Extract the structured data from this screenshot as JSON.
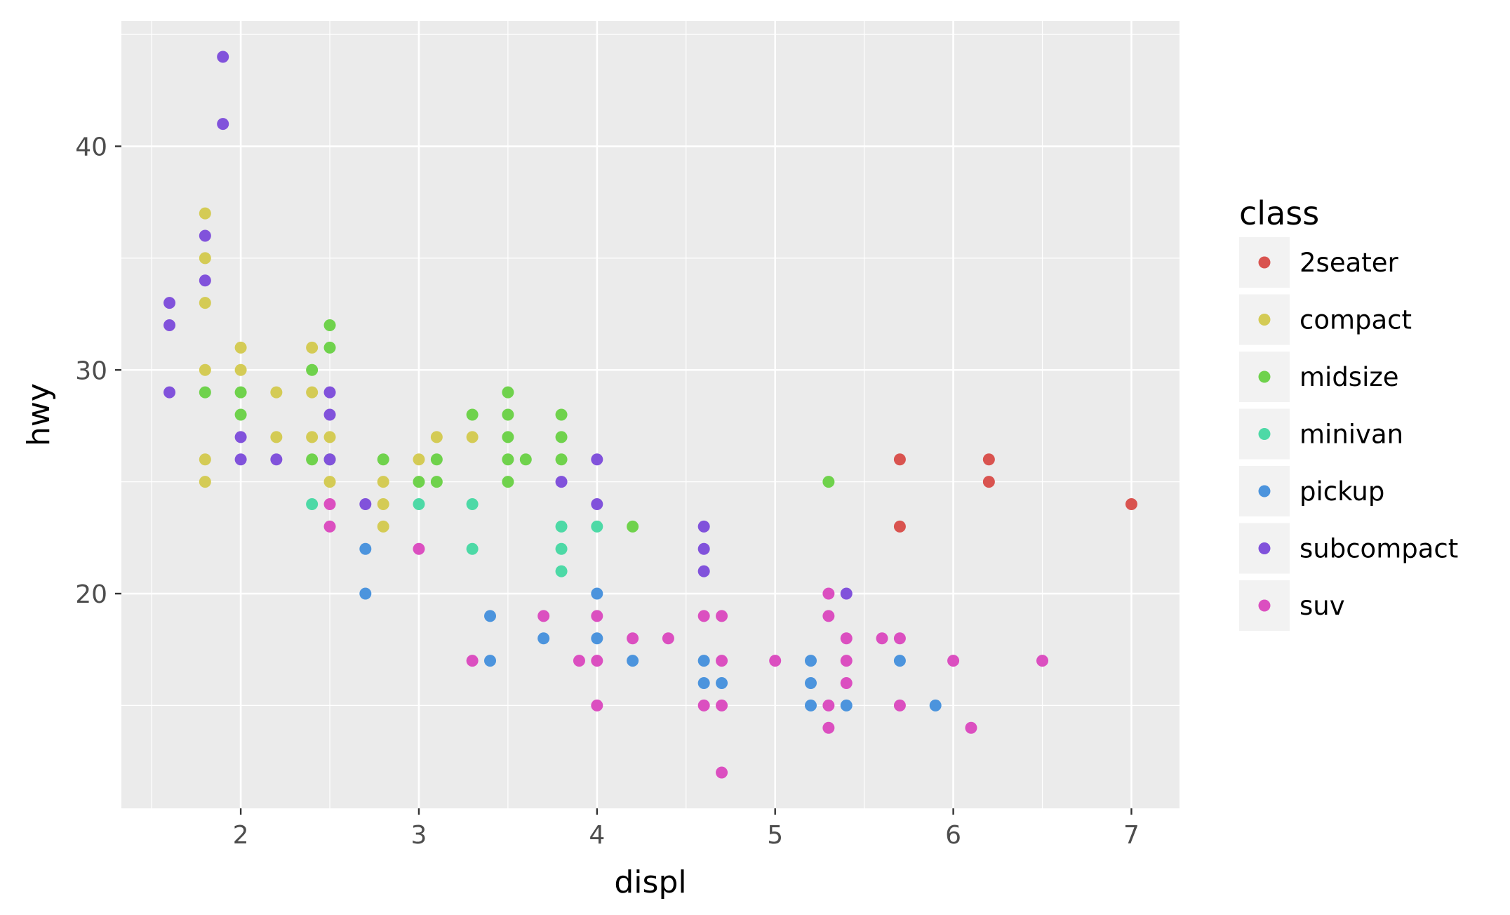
{
  "chart_data": {
    "type": "scatter",
    "xlabel": "displ",
    "ylabel": "hwy",
    "xlim": [
      1.33,
      7.27
    ],
    "ylim": [
      10.4,
      45.6
    ],
    "x_ticks": [
      2,
      3,
      4,
      5,
      6,
      7
    ],
    "x_tick_labels": [
      "2",
      "3",
      "4",
      "5",
      "6",
      "7"
    ],
    "y_ticks": [
      20,
      30,
      40
    ],
    "y_tick_labels": [
      "20",
      "30",
      "40"
    ],
    "grid": true,
    "legend": {
      "title": "class",
      "position": "right"
    },
    "series": [
      {
        "name": "2seater",
        "color": "#D9534F",
        "points": [
          [
            5.7,
            26
          ],
          [
            5.7,
            23
          ],
          [
            6.2,
            26
          ],
          [
            6.2,
            25
          ],
          [
            7.0,
            24
          ]
        ]
      },
      {
        "name": "compact",
        "color": "#D4CB55",
        "points": [
          [
            1.8,
            37
          ],
          [
            1.8,
            35
          ],
          [
            1.8,
            33
          ],
          [
            1.8,
            30
          ],
          [
            1.8,
            26
          ],
          [
            1.8,
            25
          ],
          [
            2.0,
            31
          ],
          [
            2.0,
            30
          ],
          [
            2.2,
            29
          ],
          [
            2.2,
            27
          ],
          [
            2.4,
            31
          ],
          [
            2.4,
            29
          ],
          [
            2.4,
            27
          ],
          [
            2.5,
            27
          ],
          [
            2.5,
            25
          ],
          [
            2.8,
            25
          ],
          [
            2.8,
            24
          ],
          [
            2.8,
            23
          ],
          [
            3.0,
            26
          ],
          [
            3.1,
            27
          ],
          [
            3.3,
            27
          ]
        ]
      },
      {
        "name": "midsize",
        "color": "#6FD24C",
        "points": [
          [
            1.8,
            29
          ],
          [
            2.0,
            29
          ],
          [
            2.0,
            28
          ],
          [
            2.4,
            30
          ],
          [
            2.4,
            26
          ],
          [
            2.5,
            32
          ],
          [
            2.5,
            31
          ],
          [
            2.5,
            26
          ],
          [
            2.8,
            26
          ],
          [
            3.0,
            25
          ],
          [
            3.1,
            26
          ],
          [
            3.1,
            25
          ],
          [
            3.3,
            28
          ],
          [
            3.5,
            29
          ],
          [
            3.5,
            28
          ],
          [
            3.5,
            27
          ],
          [
            3.5,
            26
          ],
          [
            3.5,
            25
          ],
          [
            3.6,
            26
          ],
          [
            3.8,
            28
          ],
          [
            3.8,
            27
          ],
          [
            3.8,
            26
          ],
          [
            4.2,
            23
          ],
          [
            5.3,
            25
          ]
        ]
      },
      {
        "name": "minivan",
        "color": "#4DD9A6",
        "points": [
          [
            2.4,
            24
          ],
          [
            3.0,
            24
          ],
          [
            3.3,
            24
          ],
          [
            3.3,
            22
          ],
          [
            3.8,
            23
          ],
          [
            3.8,
            22
          ],
          [
            3.8,
            21
          ],
          [
            4.0,
            23
          ]
        ]
      },
      {
        "name": "pickup",
        "color": "#4C94DD",
        "points": [
          [
            2.7,
            22
          ],
          [
            2.7,
            20
          ],
          [
            3.4,
            19
          ],
          [
            3.4,
            17
          ],
          [
            3.7,
            18
          ],
          [
            4.0,
            20
          ],
          [
            4.0,
            18
          ],
          [
            4.2,
            17
          ],
          [
            4.6,
            17
          ],
          [
            4.6,
            16
          ],
          [
            4.7,
            16
          ],
          [
            5.2,
            17
          ],
          [
            5.2,
            16
          ],
          [
            5.2,
            15
          ],
          [
            5.4,
            15
          ],
          [
            5.7,
            17
          ],
          [
            5.9,
            15
          ]
        ]
      },
      {
        "name": "subcompact",
        "color": "#8152DB",
        "points": [
          [
            1.6,
            33
          ],
          [
            1.6,
            32
          ],
          [
            1.6,
            29
          ],
          [
            1.8,
            36
          ],
          [
            1.8,
            34
          ],
          [
            1.9,
            44
          ],
          [
            1.9,
            41
          ],
          [
            2.0,
            27
          ],
          [
            2.0,
            26
          ],
          [
            2.2,
            26
          ],
          [
            2.5,
            29
          ],
          [
            2.5,
            28
          ],
          [
            2.5,
            26
          ],
          [
            2.7,
            24
          ],
          [
            3.8,
            25
          ],
          [
            4.0,
            26
          ],
          [
            4.0,
            24
          ],
          [
            4.6,
            23
          ],
          [
            4.6,
            22
          ],
          [
            4.6,
            21
          ],
          [
            5.4,
            20
          ]
        ]
      },
      {
        "name": "suv",
        "color": "#DB4FC0",
        "points": [
          [
            2.5,
            24
          ],
          [
            2.5,
            23
          ],
          [
            3.0,
            22
          ],
          [
            3.3,
            17
          ],
          [
            3.7,
            19
          ],
          [
            3.9,
            17
          ],
          [
            4.0,
            19
          ],
          [
            4.0,
            17
          ],
          [
            4.0,
            15
          ],
          [
            4.2,
            18
          ],
          [
            4.4,
            18
          ],
          [
            4.6,
            19
          ],
          [
            4.6,
            15
          ],
          [
            4.7,
            19
          ],
          [
            4.7,
            17
          ],
          [
            4.7,
            15
          ],
          [
            4.7,
            12
          ],
          [
            5.0,
            17
          ],
          [
            5.3,
            20
          ],
          [
            5.3,
            19
          ],
          [
            5.3,
            15
          ],
          [
            5.3,
            14
          ],
          [
            5.4,
            18
          ],
          [
            5.4,
            17
          ],
          [
            5.4,
            16
          ],
          [
            5.6,
            18
          ],
          [
            5.7,
            18
          ],
          [
            5.7,
            15
          ],
          [
            6.0,
            17
          ],
          [
            6.1,
            14
          ],
          [
            6.5,
            17
          ]
        ]
      }
    ]
  }
}
